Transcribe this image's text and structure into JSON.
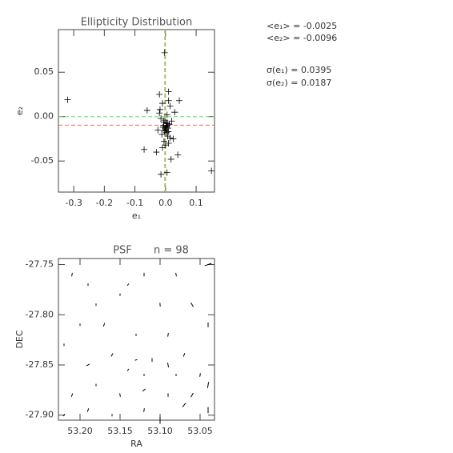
{
  "chart_data": [
    {
      "type": "scatter",
      "title": "Ellipticity Distribution",
      "xlabel": "e₁",
      "ylabel": "e₂",
      "xlim": [
        -0.35,
        0.16
      ],
      "ylim": [
        -0.085,
        0.098
      ],
      "xticks": [
        -0.3,
        -0.2,
        -0.1,
        {
          "value": 0,
          "label": "0.0"
        },
        0.1
      ],
      "yticks": [
        -0.05,
        {
          "value": 0,
          "label": "0.00"
        },
        0.05
      ],
      "color": "#000000",
      "x": [
        -0.32,
        0.15,
        -0.003,
        -0.06,
        -0.07,
        -0.03,
        -0.015,
        0.005,
        0.04,
        0.018,
        0.045,
        0.03,
        -0.02,
        0.01,
        -0.01,
        0.015,
        -0.008,
        0.004,
        0.0,
        0.006,
        -0.004,
        0.002,
        0.008,
        -0.006,
        0.012,
        -0.012,
        0.003,
        -0.002,
        0.001,
        0.007,
        -0.005,
        0.01,
        -0.015,
        0.02,
        -0.018,
        0.025,
        -0.025,
        0.005,
        -0.01,
        0.0,
        0.015,
        -0.02,
        0.01,
        0.003,
        -0.007,
        0.004,
        -0.001,
        0.009
      ],
      "values": [
        0.019,
        -0.061,
        0.072,
        0.007,
        -0.037,
        -0.04,
        -0.065,
        -0.063,
        -0.043,
        -0.048,
        0.018,
        0.005,
        0.025,
        0.028,
        0.015,
        0.012,
        -0.012,
        -0.01,
        -0.014,
        -0.008,
        -0.016,
        -0.011,
        -0.013,
        -0.006,
        -0.009,
        -0.02,
        -0.018,
        -0.004,
        -0.015,
        -0.022,
        -0.028,
        -0.03,
        -0.002,
        -0.005,
        0.008,
        -0.025,
        -0.015,
        0.002,
        -0.035,
        -0.032,
        -0.024,
        0.004,
        0.018,
        -0.012,
        -0.01,
        -0.007,
        -0.013,
        -0.017
      ],
      "reference_lines": [
        {
          "axis": "y",
          "value": 0,
          "color": "#66dd66"
        },
        {
          "axis": "y",
          "value": -0.0096,
          "color": "#ee6666"
        },
        {
          "axis": "x",
          "value": 0,
          "color": "#66dd66"
        },
        {
          "axis": "x",
          "value": -0.0025,
          "color": "#cc9944"
        }
      ],
      "annotations": [
        "<e₁> = -0.0025",
        "<e₂> = -0.0096",
        "σ(e₁) = 0.0395",
        "σ(e₂) = 0.0187"
      ]
    },
    {
      "type": "whisker",
      "title": "PSF",
      "subtitle": "n = 98",
      "xlabel": "RA",
      "ylabel": "DEC",
      "xlim": [
        53.227,
        53.032
      ],
      "ylim": [
        -27.905,
        -27.744
      ],
      "xticks": [
        {
          "value": 53.2,
          "label": "53.20"
        },
        53.15,
        {
          "value": 53.1,
          "label": "53.10"
        },
        53.05
      ],
      "yticks": [
        {
          "value": -27.9,
          "label": "-27.90"
        },
        -27.85,
        {
          "value": -27.8,
          "label": "-27.80"
        },
        -27.75
      ],
      "color": "#000000",
      "x": [
        53.21,
        53.19,
        53.14,
        53.12,
        53.08,
        53.04,
        53.06,
        53.18,
        53.15,
        53.1,
        53.2,
        53.17,
        53.13,
        53.09,
        53.04,
        53.22,
        53.16,
        53.13,
        53.11,
        53.09,
        53.07,
        53.19,
        53.14,
        53.12,
        53.08,
        53.05,
        53.21,
        53.18,
        53.15,
        53.12,
        53.09,
        53.06,
        53.04,
        53.22,
        53.19,
        53.16,
        53.12,
        53.07,
        53.04,
        53.1
      ],
      "values": [
        -27.76,
        -27.77,
        -27.77,
        -27.76,
        -27.76,
        -27.75,
        -27.79,
        -27.79,
        -27.78,
        -27.79,
        -27.81,
        -27.81,
        -27.82,
        -27.82,
        -27.81,
        -27.83,
        -27.84,
        -27.845,
        -27.845,
        -27.85,
        -27.84,
        -27.85,
        -27.855,
        -27.86,
        -27.86,
        -27.86,
        -27.88,
        -27.87,
        -27.88,
        -27.875,
        -27.88,
        -27.88,
        -27.87,
        -27.9,
        -27.895,
        -27.9,
        -27.895,
        -27.89,
        -27.895,
        -27.905
      ],
      "angles": [
        80,
        90,
        60,
        90,
        100,
        20,
        120,
        90,
        85,
        95,
        90,
        70,
        90,
        80,
        90,
        90,
        60,
        20,
        90,
        100,
        70,
        30,
        60,
        90,
        90,
        80,
        70,
        90,
        100,
        40,
        90,
        60,
        80,
        60,
        70,
        90,
        80,
        50,
        90,
        90
      ],
      "lengths": [
        0.03,
        0.02,
        0.02,
        0.03,
        0.03,
        0.06,
        0.04,
        0.02,
        0.02,
        0.03,
        0.02,
        0.03,
        0.02,
        0.03,
        0.04,
        0.02,
        0.03,
        0.02,
        0.03,
        0.04,
        0.03,
        0.03,
        0.02,
        0.02,
        0.02,
        0.03,
        0.03,
        0.02,
        0.03,
        0.03,
        0.03,
        0.04,
        0.05,
        0.02,
        0.03,
        0.02,
        0.03,
        0.04,
        0.05,
        0.06
      ]
    }
  ]
}
